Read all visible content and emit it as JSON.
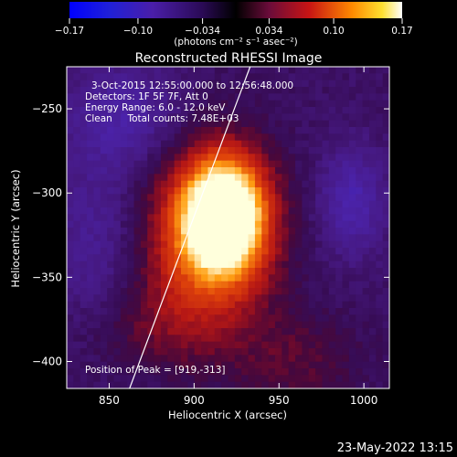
{
  "chart_data": {
    "type": "heatmap",
    "title": "Reconstructed RHESSI Image",
    "xlabel": "Heliocentric X (arcsec)",
    "ylabel": "Heliocentric Y (arcsec)",
    "xlim": [
      825,
      1015
    ],
    "ylim": [
      -416,
      -225
    ],
    "x_ticks": [
      850,
      900,
      950,
      1000
    ],
    "y_ticks": [
      -250,
      -300,
      -350,
      -400
    ],
    "colorbar": {
      "min": -0.17,
      "max": 0.17,
      "tick_values": [
        -0.17,
        -0.1,
        -0.034,
        0.034,
        0.1,
        0.17
      ],
      "tick_labels": [
        "−0.17",
        "−0.10",
        "−0.034",
        "0.034",
        "0.10",
        "0.17"
      ],
      "unit": "(photons cm⁻² s⁻¹ asec⁻²)"
    },
    "info_lines": [
      "3-Oct-2015 12:55:00.000 to 12:56:48.000",
      "Detectors: 1F 5F 7F, Att 0",
      "Energy Range: 6.0 - 12.0 keV",
      "Clean     Total counts: 7.48E+03"
    ],
    "peak_label": "Position of Peak = [919,-313]",
    "peak": [
      919,
      -313
    ],
    "limb_line": [
      [
        862,
        -416
      ],
      [
        933,
        -225
      ]
    ],
    "grid": false,
    "sources": [
      {
        "x": 918,
        "y": -313,
        "sx": 17,
        "sy": 24,
        "amp": 0.24
      },
      {
        "x": 905,
        "y": -330,
        "sx": 28,
        "sy": 38,
        "amp": 0.11
      },
      {
        "x": 872,
        "y": -380,
        "sx": 30,
        "sy": 18,
        "amp": 0.03
      },
      {
        "x": 960,
        "y": -400,
        "sx": 26,
        "sy": 20,
        "amp": 0.035
      },
      {
        "x": 993,
        "y": -305,
        "sx": 14,
        "sy": 22,
        "amp": -0.06
      },
      {
        "x": 860,
        "y": -255,
        "sx": 24,
        "sy": 22,
        "amp": -0.05
      },
      {
        "x": 845,
        "y": -330,
        "sx": 22,
        "sy": 40,
        "amp": -0.04
      }
    ],
    "background": -0.03
  },
  "footer": {
    "timestamp": "23-May-2022 13:15"
  }
}
